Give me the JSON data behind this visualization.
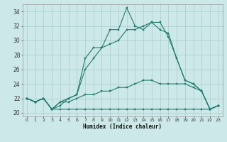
{
  "xlabel": "Humidex (Indice chaleur)",
  "xlim": [
    -0.5,
    23.5
  ],
  "ylim": [
    19.5,
    35.0
  ],
  "yticks": [
    20,
    22,
    24,
    26,
    28,
    30,
    32,
    34
  ],
  "xticks": [
    0,
    1,
    2,
    3,
    4,
    5,
    6,
    7,
    8,
    9,
    10,
    11,
    12,
    13,
    14,
    15,
    16,
    17,
    18,
    19,
    20,
    21,
    22,
    23
  ],
  "xtick_labels": [
    "0",
    "1",
    "2",
    "3",
    "4",
    "5",
    "6",
    "7",
    "8",
    "9",
    "10",
    "11",
    "12",
    "13",
    "14",
    "15",
    "16",
    "17",
    "18",
    "19",
    "20",
    "21",
    "22",
    "23"
  ],
  "background_color": "#cce8e8",
  "grid_color": "#aacccc",
  "line_color": "#1e7b6e",
  "series": [
    [
      22.0,
      21.5,
      22.0,
      20.5,
      21.0,
      22.0,
      22.5,
      27.5,
      29.0,
      29.0,
      31.5,
      31.5,
      34.5,
      32.0,
      31.5,
      32.5,
      31.5,
      31.0,
      27.5,
      24.5,
      24.0,
      23.0,
      20.5,
      21.0
    ],
    [
      22.0,
      21.5,
      22.0,
      20.5,
      21.5,
      22.0,
      22.5,
      26.0,
      27.5,
      29.0,
      29.5,
      30.0,
      31.5,
      31.5,
      32.0,
      32.5,
      32.5,
      30.5,
      27.5,
      24.5,
      24.0,
      23.0,
      20.5,
      21.0
    ],
    [
      22.0,
      21.5,
      22.0,
      20.5,
      21.5,
      21.5,
      22.0,
      22.5,
      22.5,
      23.0,
      23.0,
      23.5,
      23.5,
      24.0,
      24.5,
      24.5,
      24.0,
      24.0,
      24.0,
      24.0,
      23.5,
      23.0,
      20.5,
      21.0
    ],
    [
      22.0,
      21.5,
      22.0,
      20.5,
      20.5,
      20.5,
      20.5,
      20.5,
      20.5,
      20.5,
      20.5,
      20.5,
      20.5,
      20.5,
      20.5,
      20.5,
      20.5,
      20.5,
      20.5,
      20.5,
      20.5,
      20.5,
      20.5,
      21.0
    ]
  ]
}
